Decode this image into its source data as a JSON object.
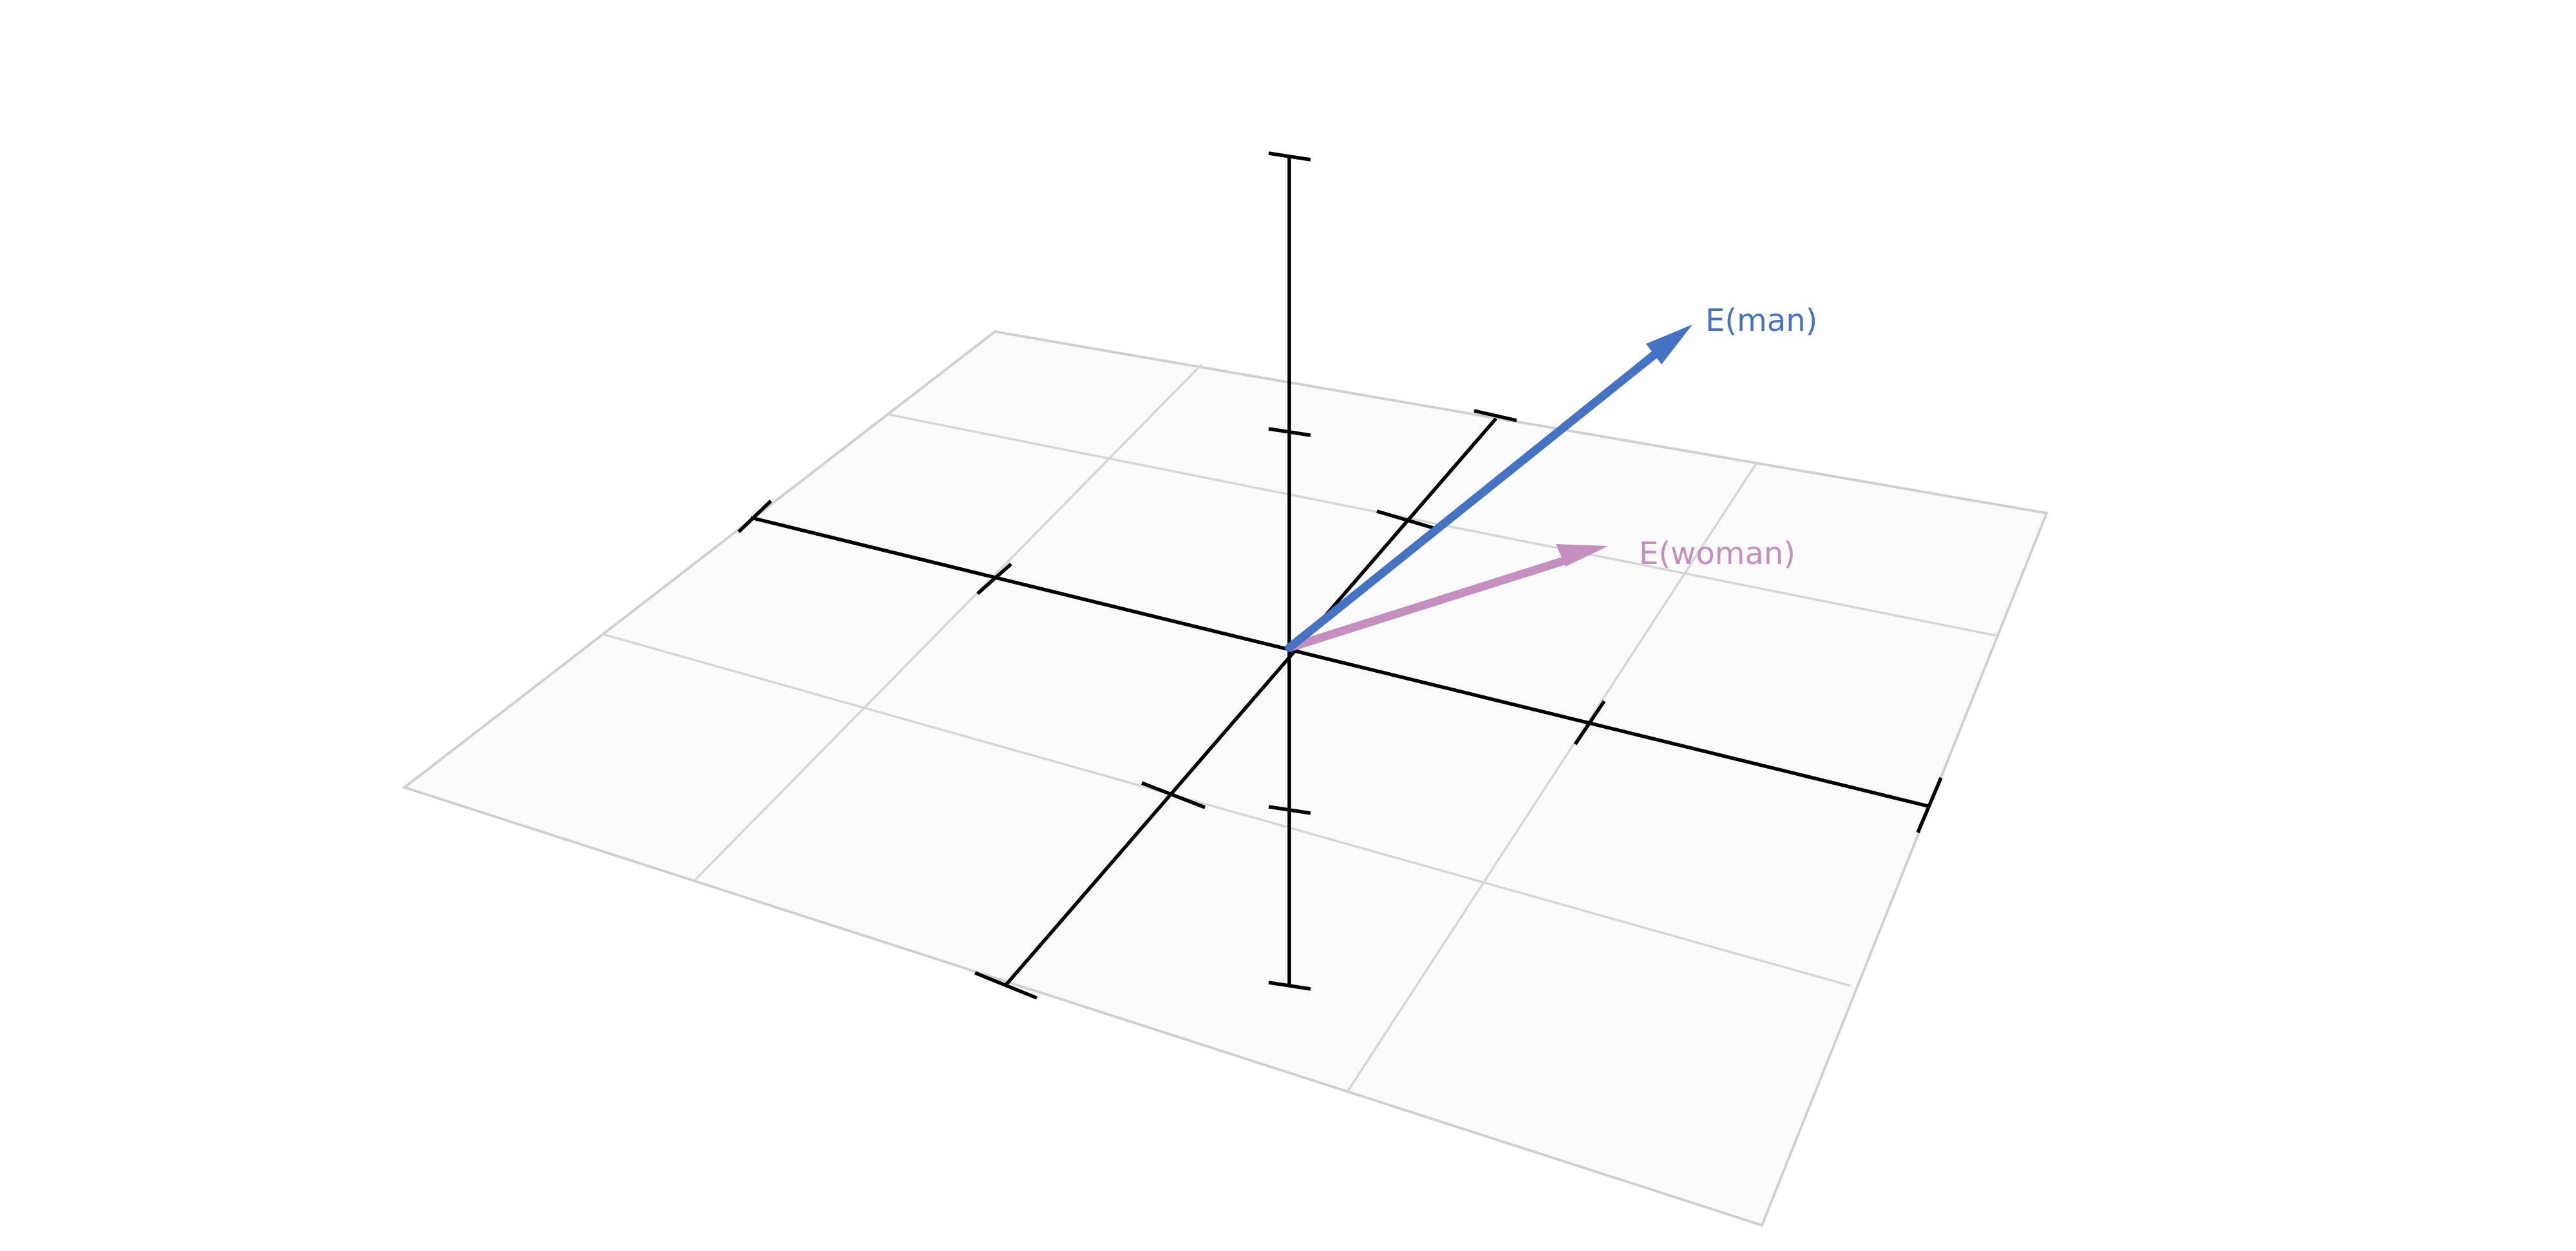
{
  "vectors": [
    {
      "id": "man",
      "label": "E(man)",
      "color": "#4472c4"
    },
    {
      "id": "woman",
      "label": "E(woman)",
      "color": "#c48fbf"
    }
  ]
}
